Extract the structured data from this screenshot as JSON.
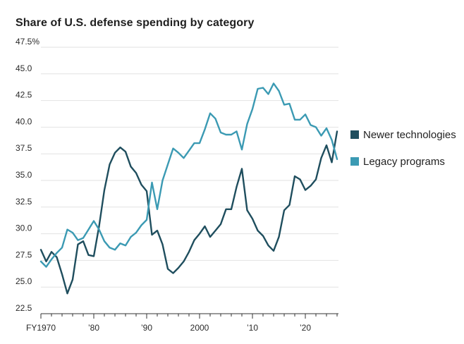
{
  "chart_data": {
    "type": "line",
    "title": "Share of U.S. defense spending by category",
    "xlabel": "",
    "ylabel": "",
    "ylim": [
      22.5,
      47.5
    ],
    "xlim": [
      1970,
      2026
    ],
    "y_ticks": [
      {
        "value": 47.5,
        "label": "47.5%"
      },
      {
        "value": 45.0,
        "label": "45.0"
      },
      {
        "value": 42.5,
        "label": "42.5"
      },
      {
        "value": 40.0,
        "label": "40.0"
      },
      {
        "value": 37.5,
        "label": "37.5"
      },
      {
        "value": 35.0,
        "label": "35.0"
      },
      {
        "value": 32.5,
        "label": "32.5"
      },
      {
        "value": 30.0,
        "label": "30.0"
      },
      {
        "value": 27.5,
        "label": "27.5"
      },
      {
        "value": 25.0,
        "label": "25.0"
      },
      {
        "value": 22.5,
        "label": "22.5"
      }
    ],
    "x_ticks": [
      {
        "value": 1970,
        "label": "FY1970"
      },
      {
        "value": 1980,
        "label": "’80"
      },
      {
        "value": 1990,
        "label": "’90"
      },
      {
        "value": 2000,
        "label": "2000"
      },
      {
        "value": 2010,
        "label": "’10"
      },
      {
        "value": 2020,
        "label": "’20"
      }
    ],
    "grid": "horizontal",
    "legend_position": "right",
    "x": [
      1970,
      1971,
      1972,
      1973,
      1974,
      1975,
      1976,
      1977,
      1978,
      1979,
      1980,
      1981,
      1982,
      1983,
      1984,
      1985,
      1986,
      1987,
      1988,
      1989,
      1990,
      1991,
      1992,
      1993,
      1994,
      1995,
      1996,
      1997,
      1998,
      1999,
      2000,
      2001,
      2002,
      2003,
      2004,
      2005,
      2006,
      2007,
      2008,
      2009,
      2010,
      2011,
      2012,
      2013,
      2014,
      2015,
      2016,
      2017,
      2018,
      2019,
      2020,
      2021,
      2022,
      2023,
      2024,
      2025,
      2026
    ],
    "series": [
      {
        "name": "Newer technologies",
        "color": "#1f4e5e",
        "values": [
          28.5,
          27.4,
          28.3,
          27.8,
          26.2,
          24.4,
          25.7,
          29.0,
          29.3,
          28.0,
          27.9,
          30.7,
          34.1,
          36.5,
          37.6,
          38.1,
          37.7,
          36.3,
          35.7,
          34.6,
          34.0,
          29.9,
          30.3,
          29.0,
          26.7,
          26.3,
          26.8,
          27.4,
          28.3,
          29.4,
          30.0,
          30.7,
          29.7,
          30.3,
          30.9,
          32.3,
          32.3,
          34.4,
          36.1,
          32.2,
          31.4,
          30.3,
          29.8,
          28.9,
          28.4,
          29.7,
          32.2,
          32.7,
          35.4,
          35.1,
          34.1,
          34.5,
          35.1,
          37.1,
          38.3,
          36.7,
          39.6
        ]
      },
      {
        "name": "Legacy programs",
        "color": "#3b9ab3",
        "values": [
          27.4,
          26.9,
          27.6,
          28.2,
          28.7,
          30.4,
          30.1,
          29.4,
          29.6,
          30.4,
          31.2,
          30.4,
          29.3,
          28.7,
          28.5,
          29.1,
          28.9,
          29.7,
          30.1,
          30.8,
          31.3,
          34.8,
          32.3,
          35.0,
          36.5,
          38.0,
          37.6,
          37.1,
          37.8,
          38.5,
          38.5,
          39.8,
          41.3,
          40.8,
          39.5,
          39.3,
          39.3,
          39.6,
          37.9,
          40.3,
          41.7,
          43.6,
          43.7,
          43.1,
          44.1,
          43.4,
          42.1,
          42.2,
          40.7,
          40.7,
          41.2,
          40.2,
          40.0,
          39.2,
          39.9,
          38.8,
          37.0
        ]
      }
    ]
  }
}
